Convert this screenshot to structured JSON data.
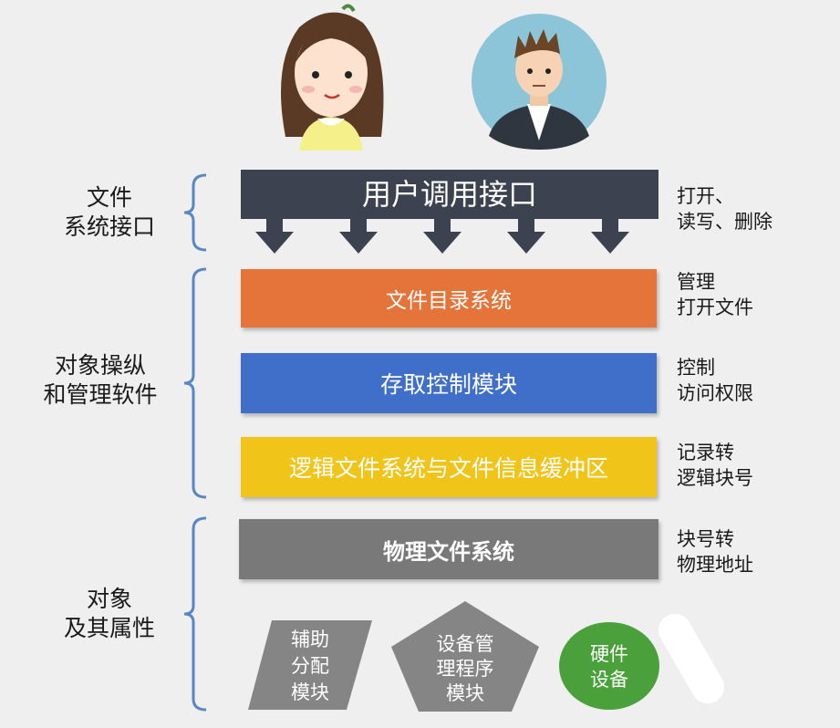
{
  "left_labels": {
    "interface": [
      "文件",
      "系统接口"
    ],
    "software": [
      "对象操纵",
      "和管理软件"
    ],
    "objects": [
      "对象",
      "及其属性"
    ]
  },
  "right_labels": {
    "interface": [
      "打开、",
      "读写、删除"
    ],
    "directory": [
      "管理",
      "打开文件"
    ],
    "access": [
      "控制",
      "访问权限"
    ],
    "logical": [
      "记录转",
      "逻辑块号"
    ],
    "physical": [
      "块号转",
      "物理地址"
    ]
  },
  "layers": {
    "user_interface": "用户调用接口",
    "directory": "文件目录系统",
    "access_control": "存取控制模块",
    "logical_fs": "逻辑文件系统与文件信息缓冲区",
    "physical_fs": "物理文件系统"
  },
  "bottom_shapes": {
    "aux_alloc": [
      "辅助",
      "分配",
      "模块"
    ],
    "device_mgmt": [
      "设备管",
      "理程序",
      "模块"
    ],
    "hardware": [
      "硬件",
      "设备"
    ]
  },
  "colors": {
    "dark_band": "#3c4250",
    "orange": "#e4743a",
    "blue": "#3f6fc8",
    "yellow": "#f0c419",
    "gray": "#797979",
    "green": "#4aa03a",
    "brace": "#5b86c5"
  }
}
